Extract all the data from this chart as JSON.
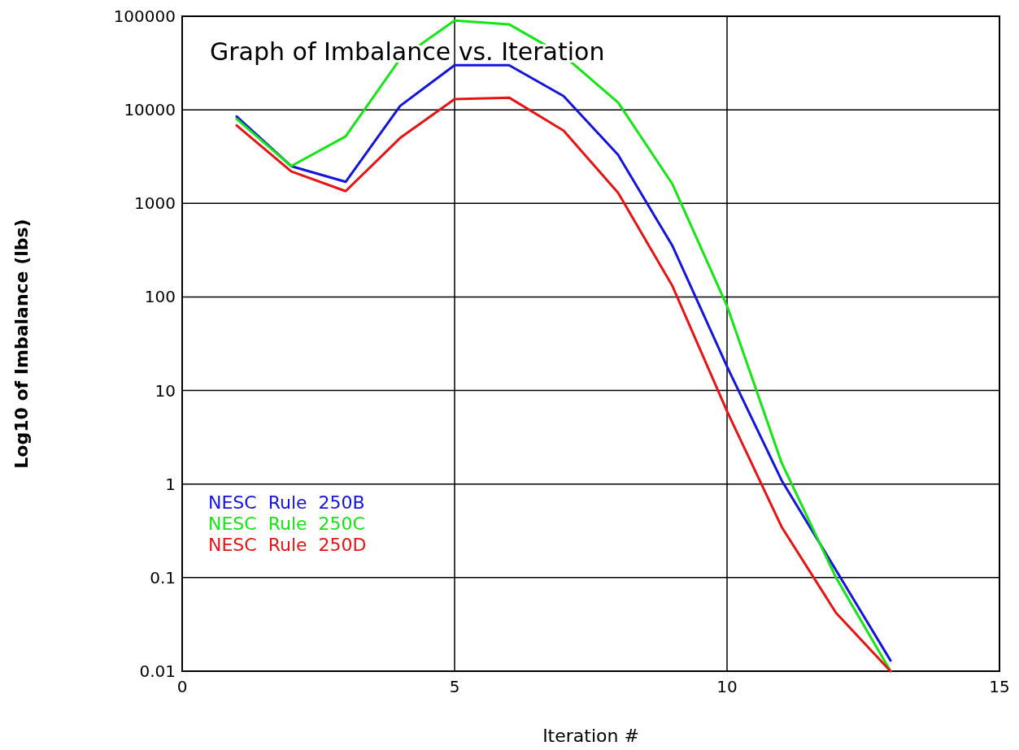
{
  "chart_data": {
    "type": "line",
    "title": "Graph of Imbalance vs. Iteration",
    "xlabel": "Iteration #",
    "ylabel": "Log10 of Imbalance (lbs)",
    "x": [
      1,
      2,
      3,
      4,
      5,
      6,
      7,
      8,
      9,
      10,
      11,
      12,
      13
    ],
    "series": [
      {
        "name": "NESC  Rule  250B",
        "color": "#1414dc",
        "values": [
          8500,
          2500,
          1700,
          11000,
          30000,
          30000,
          14000,
          3300,
          350,
          18,
          1.1,
          0.12,
          0.013
        ]
      },
      {
        "name": "NESC  Rule  250C",
        "color": "#14e614",
        "values": [
          8000,
          2500,
          5200,
          35000,
          90000,
          82000,
          38000,
          12000,
          1600,
          80,
          1.7,
          0.1,
          0.01
        ]
      },
      {
        "name": "NESC  Rule  250D",
        "color": "#e61414",
        "values": [
          6800,
          2200,
          1350,
          5000,
          13000,
          13500,
          6000,
          1300,
          130,
          6,
          0.35,
          0.042,
          0.01
        ]
      }
    ],
    "xlim": [
      0,
      15
    ],
    "xticks": [
      0,
      5,
      10,
      15
    ],
    "ylim": [
      0.01,
      100000
    ],
    "yticks": [
      0.01,
      0.1,
      1,
      10,
      100,
      1000,
      10000,
      100000
    ],
    "log": "y",
    "grid": true,
    "legend": "bottom left",
    "marker": "none",
    "line_style": "solid"
  }
}
